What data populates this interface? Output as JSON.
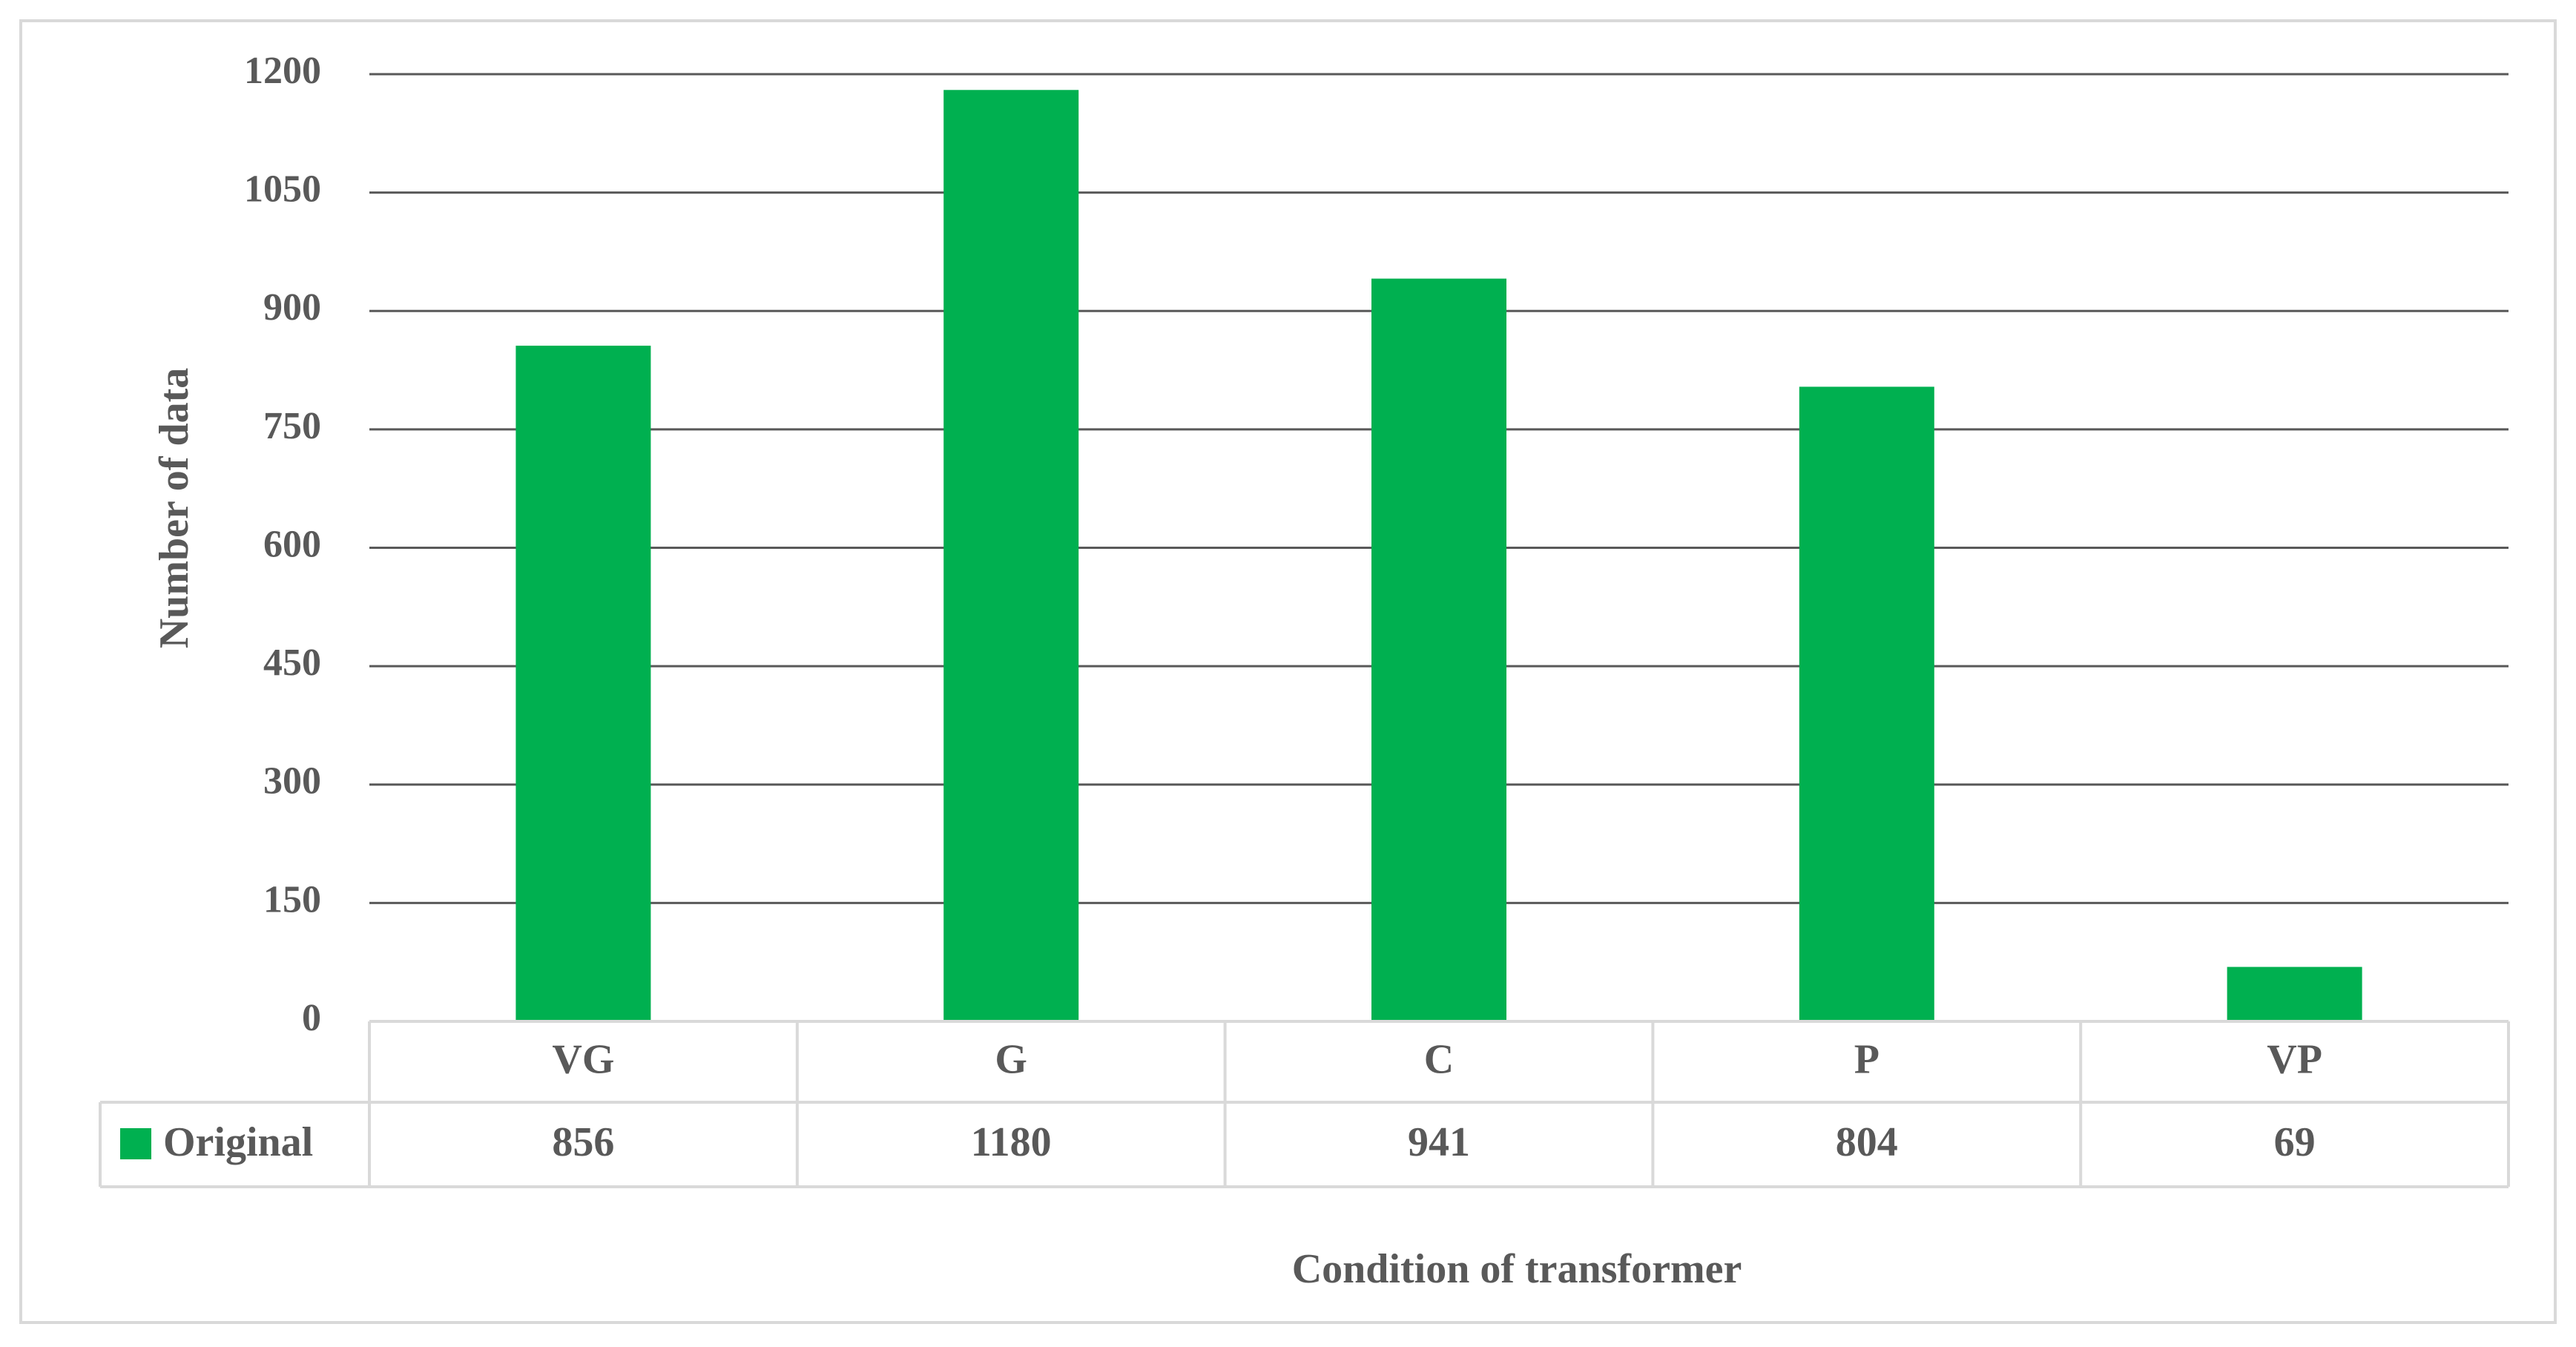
{
  "chart_data": {
    "type": "bar",
    "categories": [
      "VG",
      "G",
      "C",
      "P",
      "VP"
    ],
    "series": [
      {
        "name": "Original",
        "values": [
          856,
          1180,
          941,
          804,
          69
        ],
        "value_labels": [
          "856",
          "1180",
          "941",
          "804",
          "69"
        ],
        "color": "#00B050"
      }
    ],
    "xlabel": "Condition of transformer",
    "ylabel": "Number of data",
    "ylim": [
      0,
      1200
    ],
    "yticks": [
      0,
      150,
      300,
      450,
      600,
      750,
      900,
      1050,
      1200
    ],
    "ytick_labels": [
      "0",
      "150",
      "300",
      "450",
      "600",
      "750",
      "900",
      "1050",
      "1200"
    ],
    "grid": true,
    "legend": "data-table",
    "data_table": true
  },
  "colors": {
    "bar": "#00B050",
    "gridline": "#595959",
    "table_border": "#D9D9D9",
    "text": "#595959",
    "frame": "#D9D9D9"
  }
}
